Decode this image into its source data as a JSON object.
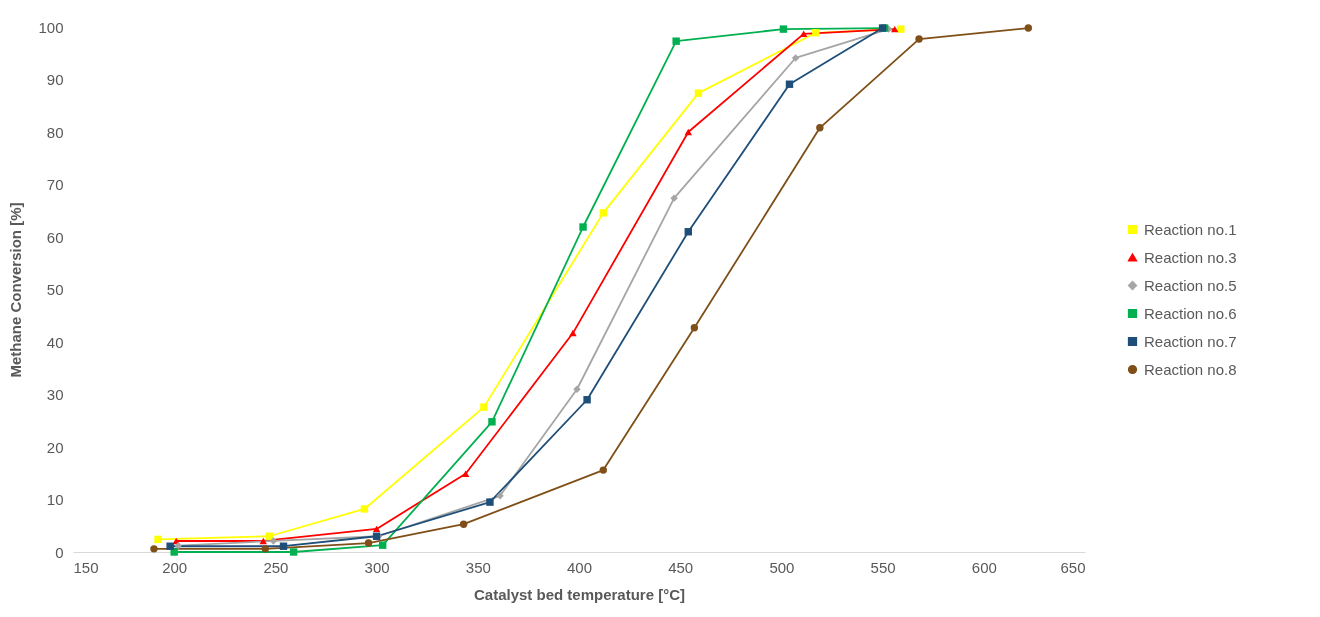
{
  "chart_data": {
    "type": "line",
    "xlabel": "Catalyst bed temperature [°C]",
    "ylabel": "Methane Conversion [%]",
    "xlim": [
      150,
      650
    ],
    "xticks": [
      150,
      200,
      250,
      300,
      350,
      400,
      450,
      500,
      550,
      600,
      650
    ],
    "ylim": [
      0,
      100
    ],
    "yticks": [
      0,
      10,
      20,
      30,
      40,
      50,
      60,
      70,
      80,
      90,
      100
    ],
    "grid": false,
    "legend": "right",
    "series": [
      {
        "name": "Reaction no.1",
        "color": "#ffff00",
        "marker": "square",
        "x": [
          192,
          247,
          294,
          353,
          412,
          459,
          517,
          559
        ],
        "values": [
          2.4,
          3.0,
          8.2,
          27.6,
          64.6,
          87.4,
          98.9,
          99.6
        ]
      },
      {
        "name": "Reaction no.3",
        "color": "#ff0000",
        "marker": "triangle",
        "x": [
          201,
          244,
          300,
          344,
          397,
          454,
          511,
          556
        ],
        "values": [
          2.1,
          2.1,
          4.4,
          14.9,
          41.7,
          80,
          98.7,
          99.6
        ]
      },
      {
        "name": "Reaction no.5",
        "color": "#a5a5a5",
        "marker": "diamond",
        "x": [
          202,
          249,
          301,
          361,
          399,
          447,
          507,
          553
        ],
        "values": [
          1.2,
          2.1,
          3,
          10.7,
          31,
          67.4,
          94.1,
          99.6
        ]
      },
      {
        "name": "Reaction no.6",
        "color": "#00b050",
        "marker": "square",
        "x": [
          200,
          259,
          303,
          357,
          402,
          448,
          501,
          551
        ],
        "values": [
          0,
          0,
          1.3,
          24.8,
          61.9,
          97.3,
          99.6,
          99.8
        ]
      },
      {
        "name": "Reaction no.7",
        "color": "#1f4e79",
        "marker": "square",
        "x": [
          198,
          254,
          300,
          356,
          404,
          454,
          504,
          550
        ],
        "values": [
          1.1,
          1.1,
          3,
          9.5,
          29,
          61,
          89.1,
          99.8
        ]
      },
      {
        "name": "Reaction no.8",
        "color": "#7f4f17",
        "marker": "circle",
        "x": [
          190,
          245,
          296,
          343,
          412,
          457,
          519,
          568,
          622
        ],
        "values": [
          0.6,
          0.6,
          1.7,
          5.3,
          15.6,
          42.7,
          80.8,
          97.7,
          99.8
        ]
      }
    ]
  }
}
